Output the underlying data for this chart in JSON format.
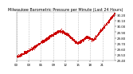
{
  "title": "Milwaukee Barometric Pressure per Minute (Last 24 Hours)",
  "background_color": "#ffffff",
  "plot_bg_color": "#ffffff",
  "line_color": "#cc0000",
  "grid_color": "#bbbbbb",
  "y_min": 29.4,
  "y_max": 30.25,
  "yticks": [
    29.4,
    29.5,
    29.6,
    29.7,
    29.8,
    29.9,
    30.0,
    30.1,
    30.2
  ],
  "num_points": 1440,
  "title_fontsize": 3.5,
  "tick_fontsize": 2.8,
  "marker_size": 0.5
}
